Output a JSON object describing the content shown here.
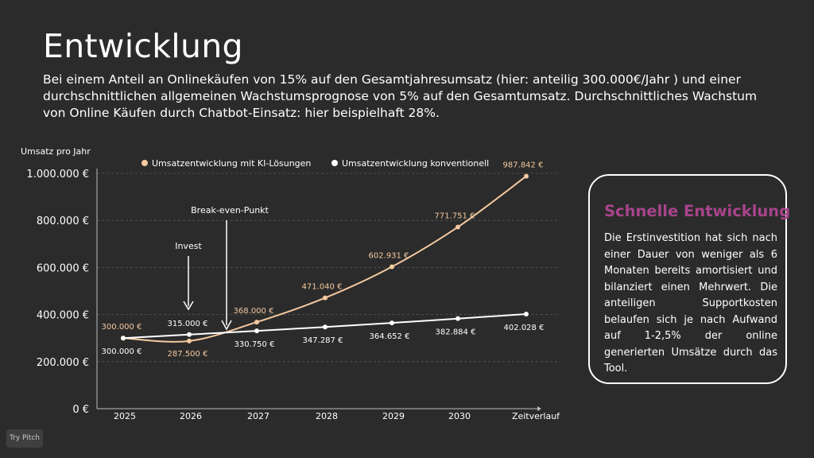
{
  "title": "Entwicklung",
  "intro": "Bei einem Anteil an Onlinekäufen von 15% auf den Gesamtjahresumsatz (hier: anteilig 300.000€/Jahr ) und einer durchschnittlichen allgemeinen Wachstumsprognose von 5% auf den Gesamtumsatz. Durchschnittliches Wachstum von Online Käufen durch Chatbot-Einsatz: hier beispielhaft 28%.",
  "card": {
    "title": "Schnelle Entwicklung",
    "text": "Die Erstinvestition hat sich nach einer Dauer von weniger als 6 Monaten bereits amortisiert und bilanziert einen Mehrwert. Die anteiligen Supportkosten belaufen sich je nach Aufwand auf 1-2,5% der online generierten Umsätze durch das Tool."
  },
  "badge": "Try Pitch",
  "colors": {
    "background": "#2b2b2b",
    "ki_series": "#f5c9a0",
    "conventional_series": "#ffffff",
    "card_title": "#a8448b"
  },
  "chart_data": {
    "type": "line",
    "ylabel": "Umsatz pro Jahr",
    "xlabel": "Zeitverlauf",
    "x": [
      "2025",
      "2026",
      "2027",
      "2028",
      "2029",
      "2030",
      "Zeitverlauf"
    ],
    "ylim": [
      0,
      1000000
    ],
    "yticks": [
      0,
      200000,
      400000,
      600000,
      800000,
      1000000
    ],
    "ytick_labels": [
      "0 €",
      "200.000 €",
      "400.000 €",
      "600.000 €",
      "800.000 €",
      "1.000.000 €"
    ],
    "grid": true,
    "legend_position": "top",
    "series": [
      {
        "name": "Umsatzentwicklung mit KI-Lösungen",
        "color": "#f5c9a0",
        "values": [
          300000,
          287500,
          368000,
          471040,
          602931,
          771751,
          987842
        ],
        "labels": [
          "300.000 €",
          "287.500 €",
          "368.000 €",
          "471.040 €",
          "602.931 €",
          "771.751 €",
          "987.842 €"
        ]
      },
      {
        "name": "Umsatzentwicklung konventionell",
        "color": "#ffffff",
        "values": [
          300000,
          315000,
          330750,
          347287,
          364652,
          382884,
          402028
        ],
        "labels": [
          "300.000 €",
          "315.000 €",
          "330.750 €",
          "347.287 €",
          "364.652 €",
          "382.884 €",
          "402.028 €"
        ]
      }
    ],
    "annotations": [
      {
        "text": "Invest"
      },
      {
        "text": "Break-even-Punkt"
      }
    ]
  }
}
